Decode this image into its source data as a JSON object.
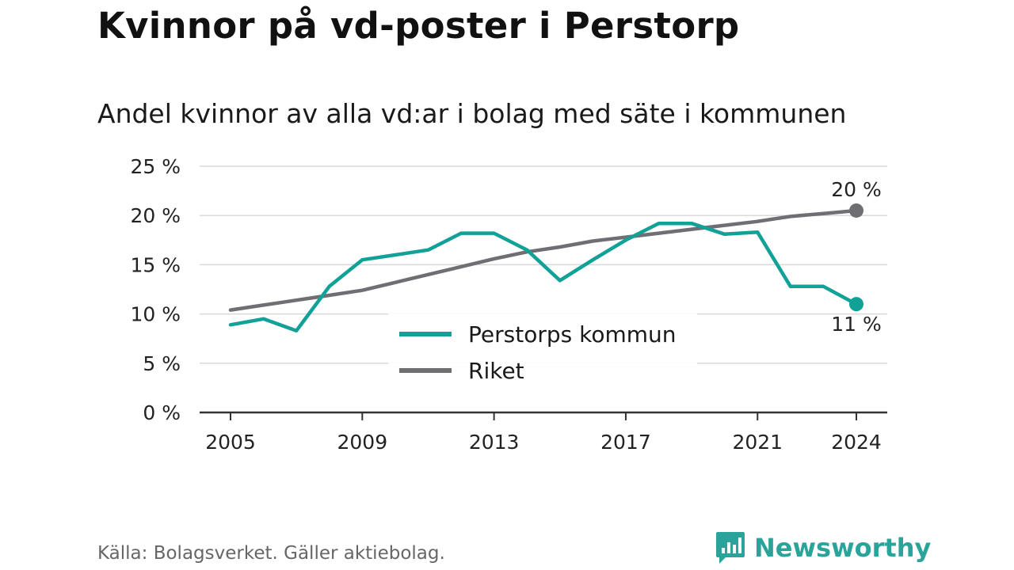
{
  "title": "Kvinnor på vd-poster i Perstorp",
  "subtitle": "Andel kvinnor av alla vd:ar i bolag med säte i kommunen",
  "source": "Källa: Bolagsverket. Gäller aktiebolag.",
  "brand": {
    "name": "Newsworthy",
    "icon": "newsworthy-logo-icon",
    "color": "#2aa39a"
  },
  "chart_data": {
    "type": "line",
    "x": [
      2005,
      2006,
      2007,
      2008,
      2009,
      2010,
      2011,
      2012,
      2013,
      2014,
      2015,
      2016,
      2017,
      2018,
      2019,
      2020,
      2021,
      2022,
      2023,
      2024
    ],
    "series": [
      {
        "name": "Perstorps kommun",
        "color": "#12a197",
        "values": [
          8.9,
          9.5,
          8.3,
          12.8,
          15.5,
          16.0,
          16.5,
          18.2,
          18.2,
          16.5,
          13.4,
          15.5,
          17.5,
          19.2,
          19.2,
          18.1,
          18.3,
          12.8,
          12.8,
          11.0
        ],
        "end_label": "11 %"
      },
      {
        "name": "Riket",
        "color": "#6f6e73",
        "values": [
          10.4,
          10.9,
          11.4,
          11.9,
          12.4,
          13.2,
          14.0,
          14.8,
          15.6,
          16.3,
          16.8,
          17.4,
          17.8,
          18.2,
          18.6,
          19.0,
          19.4,
          19.9,
          20.2,
          20.5
        ],
        "end_label": "20 %"
      }
    ],
    "ylim": [
      0,
      25
    ],
    "yticks": [
      0,
      5,
      10,
      15,
      20,
      25
    ],
    "ytick_labels": [
      "0 %",
      "5 %",
      "10 %",
      "15 %",
      "20 %",
      "25 %"
    ],
    "xticks": [
      2005,
      2009,
      2013,
      2017,
      2021,
      2024
    ],
    "xtick_labels": [
      "2005",
      "2009",
      "2013",
      "2017",
      "2021",
      "2024"
    ],
    "grid": true,
    "legend_position": "center-bottom"
  }
}
